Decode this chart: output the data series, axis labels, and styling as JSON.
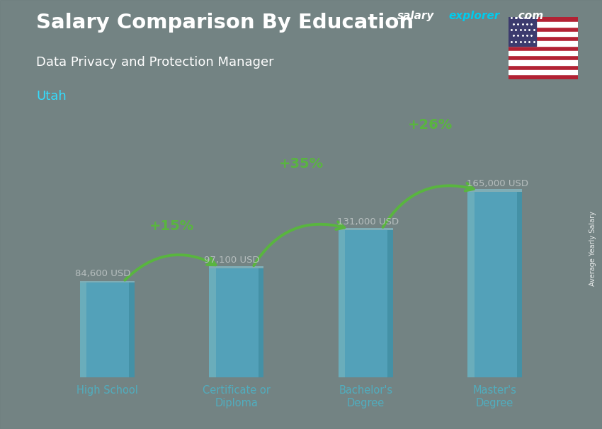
{
  "title_main": "Salary Comparison By Education",
  "title_sub": "Data Privacy and Protection Manager",
  "title_location": "Utah",
  "watermark_salary": "salary",
  "watermark_explorer": "explorer",
  "watermark_com": ".com",
  "ylabel": "Average Yearly Salary",
  "categories": [
    "High School",
    "Certificate or\nDiploma",
    "Bachelor's\nDegree",
    "Master's\nDegree"
  ],
  "values": [
    84600,
    97100,
    131000,
    165000
  ],
  "value_labels": [
    "84,600 USD",
    "97,100 USD",
    "131,000 USD",
    "165,000 USD"
  ],
  "pct_labels": [
    "+15%",
    "+35%",
    "+26%"
  ],
  "bar_color": "#33ccff",
  "bar_highlight": "#66ddff",
  "bar_shadow": "#0099bb",
  "bg_color": "#7a8a8a",
  "text_color_white": "#ffffff",
  "text_color_green": "#44ee00",
  "text_color_cyan": "#33ddff",
  "arrow_color": "#44ee00",
  "ylim_max": 210000,
  "fig_width": 8.5,
  "fig_height": 6.06,
  "bar_width": 0.42
}
